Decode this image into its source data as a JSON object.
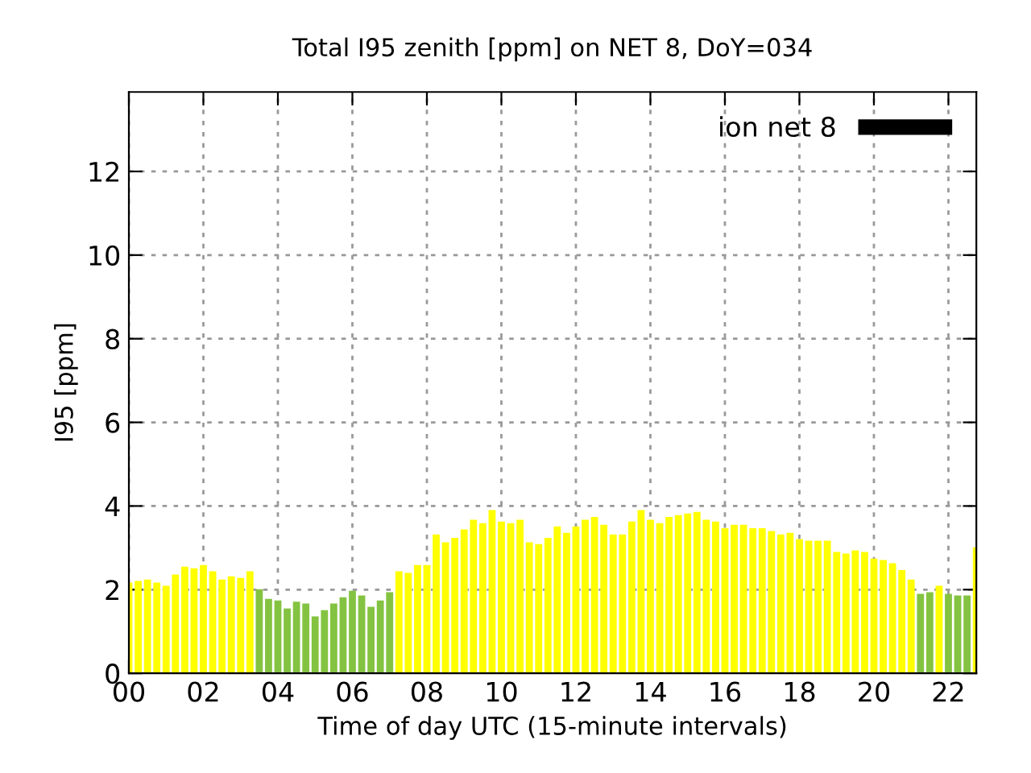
{
  "chart_data": {
    "type": "bar",
    "title": "Total I95 zenith [ppm] on NET 8, DoY=034",
    "xlabel": "Time of day UTC (15-minute intervals)",
    "ylabel": "I95 [ppm]",
    "x": [
      0,
      0.25,
      0.5,
      0.75,
      1,
      1.25,
      1.5,
      1.75,
      2,
      2.25,
      2.5,
      2.75,
      3,
      3.25,
      3.5,
      3.75,
      4,
      4.25,
      4.5,
      4.75,
      5,
      5.25,
      5.5,
      5.75,
      6,
      6.25,
      6.5,
      6.75,
      7,
      7.25,
      7.5,
      7.75,
      8,
      8.25,
      8.5,
      8.75,
      9,
      9.25,
      9.5,
      9.75,
      10,
      10.25,
      10.5,
      10.75,
      11,
      11.25,
      11.5,
      11.75,
      12,
      12.25,
      12.5,
      12.75,
      13,
      13.25,
      13.5,
      13.75,
      14,
      14.25,
      14.5,
      14.75,
      15,
      15.25,
      15.5,
      15.75,
      16,
      16.25,
      16.5,
      16.75,
      17,
      17.25,
      17.5,
      17.75,
      18,
      18.25,
      18.5,
      18.75,
      19,
      19.25,
      19.5,
      19.75,
      20,
      20.25,
      20.5,
      20.75,
      21,
      21.25,
      21.5,
      21.75,
      22,
      22.25,
      22.5,
      22.75
    ],
    "series": [
      {
        "name": "ion net 8",
        "color": "#000000",
        "values": [
          2.17,
          2.21,
          2.24,
          2.17,
          2.09,
          2.36,
          2.55,
          2.51,
          2.59,
          2.44,
          2.24,
          2.32,
          2.28,
          2.44,
          2.01,
          1.78,
          1.74,
          1.55,
          1.71,
          1.67,
          1.36,
          1.51,
          1.67,
          1.82,
          1.97,
          1.86,
          1.59,
          1.74,
          1.94,
          2.44,
          2.4,
          2.59,
          2.59,
          3.32,
          3.13,
          3.24,
          3.44,
          3.67,
          3.59,
          3.9,
          3.63,
          3.59,
          3.67,
          3.13,
          3.09,
          3.24,
          3.51,
          3.36,
          3.51,
          3.67,
          3.74,
          3.55,
          3.32,
          3.32,
          3.63,
          3.9,
          3.67,
          3.59,
          3.74,
          3.78,
          3.82,
          3.86,
          3.67,
          3.63,
          3.47,
          3.55,
          3.55,
          3.47,
          3.47,
          3.4,
          3.32,
          3.36,
          3.21,
          3.17,
          3.17,
          3.17,
          2.9,
          2.86,
          2.94,
          2.9,
          2.74,
          2.71,
          2.63,
          2.47,
          2.24,
          1.9,
          1.94,
          2.09,
          1.9,
          1.86,
          1.86,
          3.01
        ],
        "colors": [
          "#ffff00",
          "#ffff00",
          "#ffff00",
          "#ffff00",
          "#ffff00",
          "#ffff00",
          "#ffff00",
          "#ffff00",
          "#ffff00",
          "#ffff00",
          "#ffff00",
          "#ffff00",
          "#ffff00",
          "#ffff00",
          "#84c341",
          "#84c341",
          "#84c341",
          "#84c341",
          "#84c341",
          "#84c341",
          "#84c341",
          "#84c341",
          "#84c341",
          "#84c341",
          "#84c341",
          "#84c341",
          "#84c341",
          "#84c341",
          "#84c341",
          "#ffff00",
          "#ffff00",
          "#ffff00",
          "#ffff00",
          "#ffff00",
          "#ffff00",
          "#ffff00",
          "#ffff00",
          "#ffff00",
          "#ffff00",
          "#ffff00",
          "#ffff00",
          "#ffff00",
          "#ffff00",
          "#ffff00",
          "#ffff00",
          "#ffff00",
          "#ffff00",
          "#ffff00",
          "#ffff00",
          "#ffff00",
          "#ffff00",
          "#ffff00",
          "#ffff00",
          "#ffff00",
          "#ffff00",
          "#ffff00",
          "#ffff00",
          "#ffff00",
          "#ffff00",
          "#ffff00",
          "#ffff00",
          "#ffff00",
          "#ffff00",
          "#ffff00",
          "#ffff00",
          "#ffff00",
          "#ffff00",
          "#ffff00",
          "#ffff00",
          "#ffff00",
          "#ffff00",
          "#ffff00",
          "#ffff00",
          "#ffff00",
          "#ffff00",
          "#ffff00",
          "#ffff00",
          "#ffff00",
          "#ffff00",
          "#ffff00",
          "#ffff00",
          "#ffff00",
          "#ffff00",
          "#ffff00",
          "#ffff00",
          "#84c341",
          "#84c341",
          "#ffff00",
          "#84c341",
          "#84c341",
          "#84c341",
          "#ffff00"
        ]
      }
    ],
    "xlim": [
      0,
      22.75
    ],
    "ylim": [
      0,
      13.9
    ],
    "xticks": [
      {
        "value": 0,
        "label": "00"
      },
      {
        "value": 2,
        "label": "02"
      },
      {
        "value": 4,
        "label": "04"
      },
      {
        "value": 6,
        "label": "06"
      },
      {
        "value": 8,
        "label": "08"
      },
      {
        "value": 10,
        "label": "10"
      },
      {
        "value": 12,
        "label": "12"
      },
      {
        "value": 14,
        "label": "14"
      },
      {
        "value": 16,
        "label": "16"
      },
      {
        "value": 18,
        "label": "18"
      },
      {
        "value": 20,
        "label": "20"
      },
      {
        "value": 22,
        "label": "22"
      }
    ],
    "yticks": [
      0,
      2,
      4,
      6,
      8,
      10,
      12
    ],
    "grid": true,
    "legend": "top right"
  }
}
